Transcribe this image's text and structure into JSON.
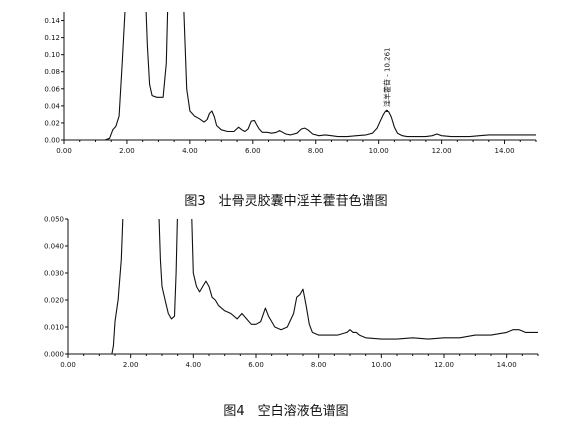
{
  "chart_data": [
    {
      "type": "line",
      "title": "",
      "caption": "图3　壮骨灵胶囊中淫羊藿苷色谱图",
      "xlabel": "",
      "ylabel": "",
      "xlim": [
        0,
        15
      ],
      "ylim": [
        0,
        0.15
      ],
      "x_ticks": [
        0,
        2,
        4,
        6,
        8,
        10,
        12,
        14
      ],
      "x_tick_labels": [
        "0.00",
        "2.00",
        "4.00",
        "6.00",
        "8.00",
        "10.00",
        "12.00",
        "14.00"
      ],
      "y_ticks": [
        0,
        0.02,
        0.04,
        0.06,
        0.08,
        0.1,
        0.12,
        0.14
      ],
      "y_tick_labels": [
        "0.00",
        "0.02",
        "0.04",
        "0.06",
        "0.08",
        "0.10",
        "0.12",
        "0.14"
      ],
      "grid": false,
      "annotations": [
        {
          "label": "淫羊藿苷 - 10.261",
          "x": 10.261,
          "y": 0.034
        }
      ],
      "series": [
        {
          "x": [
            0,
            1.3,
            1.45,
            1.55,
            1.65,
            1.75,
            1.85,
            1.95,
            2.0,
            2.05,
            2.15,
            2.3,
            2.5,
            2.6,
            2.65,
            2.72,
            2.8,
            2.95,
            3.05,
            3.15,
            3.25,
            3.3,
            3.35,
            3.42,
            3.5,
            3.6,
            3.7,
            3.8,
            3.9,
            4.0,
            4.15,
            4.3,
            4.45,
            4.55,
            4.62,
            4.7,
            4.78,
            4.85,
            5.0,
            5.2,
            5.4,
            5.55,
            5.65,
            5.75,
            5.85,
            5.95,
            6.05,
            6.12,
            6.2,
            6.3,
            6.45,
            6.6,
            6.75,
            6.85,
            6.95,
            7.05,
            7.2,
            7.4,
            7.55,
            7.65,
            7.75,
            7.9,
            8.1,
            8.3,
            8.5,
            8.7,
            9.0,
            9.3,
            9.6,
            9.8,
            9.95,
            10.05,
            10.15,
            10.22,
            10.26,
            10.32,
            10.4,
            10.5,
            10.6,
            10.75,
            10.9,
            11.1,
            11.3,
            11.5,
            11.7,
            11.85,
            12.0,
            12.3,
            12.6,
            12.9,
            13.2,
            13.5,
            14.0,
            14.5,
            15.0
          ],
          "y": [
            0.0,
            0.0,
            0.002,
            0.012,
            0.016,
            0.028,
            0.09,
            0.16,
            0.16,
            0.16,
            0.16,
            0.16,
            0.16,
            0.16,
            0.11,
            0.065,
            0.052,
            0.05,
            0.05,
            0.05,
            0.09,
            0.16,
            0.16,
            0.16,
            0.16,
            0.16,
            0.16,
            0.16,
            0.06,
            0.034,
            0.028,
            0.025,
            0.021,
            0.024,
            0.031,
            0.034,
            0.027,
            0.017,
            0.012,
            0.01,
            0.01,
            0.015,
            0.012,
            0.01,
            0.013,
            0.022,
            0.023,
            0.018,
            0.013,
            0.009,
            0.009,
            0.008,
            0.009,
            0.011,
            0.009,
            0.007,
            0.006,
            0.008,
            0.013,
            0.014,
            0.012,
            0.007,
            0.005,
            0.006,
            0.005,
            0.004,
            0.004,
            0.005,
            0.006,
            0.008,
            0.014,
            0.022,
            0.03,
            0.034,
            0.034,
            0.033,
            0.027,
            0.015,
            0.008,
            0.005,
            0.004,
            0.004,
            0.004,
            0.004,
            0.005,
            0.007,
            0.005,
            0.004,
            0.004,
            0.004,
            0.005,
            0.006,
            0.006,
            0.006,
            0.006
          ]
        }
      ]
    },
    {
      "type": "line",
      "title": "",
      "caption": "图4　空白溶液色谱图",
      "xlabel": "",
      "ylabel": "",
      "xlim": [
        0,
        15
      ],
      "ylim": [
        0,
        0.05
      ],
      "x_ticks": [
        0,
        2,
        4,
        6,
        8,
        10,
        12,
        14
      ],
      "x_tick_labels": [
        "0.00",
        "2.00",
        "4.00",
        "6.00",
        "8.00",
        "10.00",
        "12.00",
        "14.00"
      ],
      "y_ticks": [
        0,
        0.01,
        0.02,
        0.03,
        0.04,
        0.05
      ],
      "y_tick_labels": [
        "0.000",
        "0.010",
        "0.020",
        "0.030",
        "0.040",
        "0.050"
      ],
      "grid": false,
      "annotations": [],
      "series": [
        {
          "x": [
            0,
            1.4,
            1.45,
            1.5,
            1.6,
            1.7,
            1.75,
            1.8,
            2.0,
            2.5,
            2.8,
            2.9,
            2.95,
            3.0,
            3.1,
            3.2,
            3.3,
            3.4,
            3.45,
            3.5,
            3.6,
            3.9,
            3.95,
            4.0,
            4.1,
            4.2,
            4.3,
            4.4,
            4.5,
            4.6,
            4.7,
            4.8,
            5.0,
            5.2,
            5.4,
            5.55,
            5.7,
            5.85,
            6.0,
            6.15,
            6.3,
            6.4,
            6.5,
            6.6,
            6.8,
            7.0,
            7.2,
            7.3,
            7.4,
            7.5,
            7.6,
            7.7,
            7.8,
            8.0,
            8.3,
            8.6,
            8.9,
            9.0,
            9.1,
            9.2,
            9.3,
            9.5,
            10.0,
            10.5,
            11.0,
            11.5,
            12.0,
            12.5,
            13.0,
            13.5,
            14.0,
            14.2,
            14.4,
            14.6,
            14.8,
            15.0
          ],
          "y": [
            0.0,
            0.0,
            0.003,
            0.012,
            0.02,
            0.035,
            0.05,
            0.055,
            0.055,
            0.055,
            0.055,
            0.052,
            0.035,
            0.025,
            0.02,
            0.015,
            0.013,
            0.014,
            0.03,
            0.055,
            0.055,
            0.055,
            0.05,
            0.03,
            0.025,
            0.023,
            0.025,
            0.027,
            0.025,
            0.021,
            0.02,
            0.018,
            0.016,
            0.015,
            0.013,
            0.015,
            0.013,
            0.011,
            0.011,
            0.012,
            0.017,
            0.014,
            0.012,
            0.01,
            0.009,
            0.01,
            0.015,
            0.021,
            0.022,
            0.024,
            0.018,
            0.011,
            0.008,
            0.007,
            0.007,
            0.007,
            0.008,
            0.009,
            0.008,
            0.008,
            0.007,
            0.006,
            0.0055,
            0.0055,
            0.006,
            0.0055,
            0.006,
            0.006,
            0.007,
            0.007,
            0.008,
            0.009,
            0.009,
            0.008,
            0.008,
            0.008
          ]
        }
      ]
    }
  ]
}
